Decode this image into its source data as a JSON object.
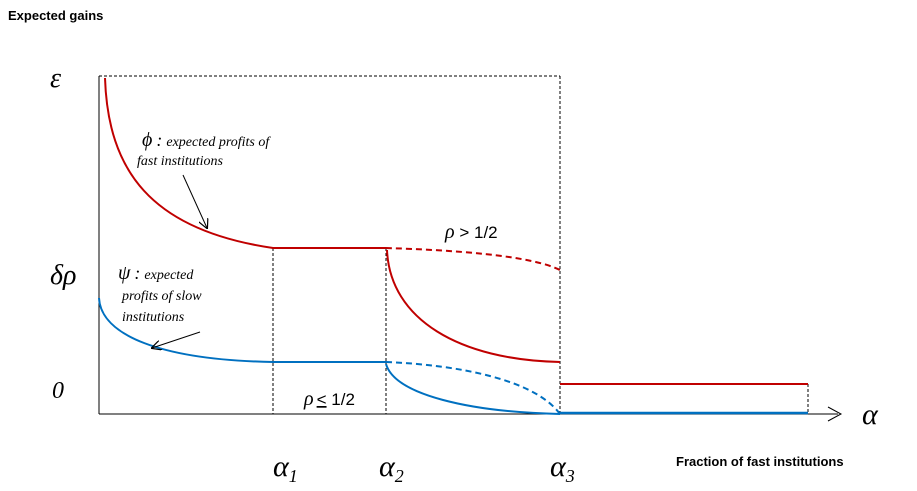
{
  "y_axis_title": "Expected gains",
  "x_axis_title": "Fraction of fast institutions",
  "axis_symbol": "α",
  "y_ticks": {
    "epsilon": "ε",
    "delta_rho": "δρ",
    "zero": "0"
  },
  "x_ticks": {
    "alpha1": {
      "base": "α",
      "sub": "1"
    },
    "alpha2": {
      "base": "α",
      "sub": "2"
    },
    "alpha3": {
      "base": "α",
      "sub": "3"
    }
  },
  "phi_label": {
    "symbol": "ϕ",
    "colon": ":",
    "line1": "expected profits of",
    "line2": "fast institutions"
  },
  "psi_label": {
    "symbol": "ψ",
    "colon": ":",
    "line1": "expected",
    "line2": "profits of slow",
    "line3": "institutions"
  },
  "rho_high": {
    "rho": "ρ",
    "rest": " > 1/2"
  },
  "rho_low": {
    "rho": "ρ",
    "rel": "<",
    "rest": " 1/2"
  },
  "colors": {
    "fast": "#c00000",
    "slow": "#0070c0",
    "axis": "#000000"
  }
}
